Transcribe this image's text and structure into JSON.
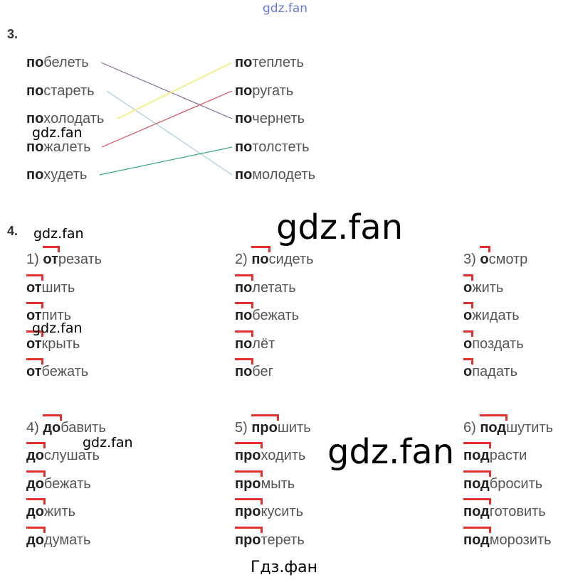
{
  "watermarks": {
    "top": "gdz.fan",
    "small": "gdz.fan",
    "big": "gdz.fan",
    "footer": "Гдз.фан"
  },
  "task3": {
    "number": "3.",
    "left": [
      {
        "prefix": "по",
        "rest": "белеть"
      },
      {
        "prefix": "по",
        "rest": "стареть"
      },
      {
        "prefix": "по",
        "rest": "холодать"
      },
      {
        "prefix": "по",
        "rest": "жалеть"
      },
      {
        "prefix": "по",
        "rest": "худеть"
      }
    ],
    "right": [
      {
        "prefix": "по",
        "rest": "теплеть"
      },
      {
        "prefix": "по",
        "rest": "ругать"
      },
      {
        "prefix": "по",
        "rest": "чернеть"
      },
      {
        "prefix": "по",
        "rest": "толстеть"
      },
      {
        "prefix": "по",
        "rest": "молодеть"
      }
    ],
    "matches": [
      {
        "left": 0,
        "right": 2,
        "color": "#8a6a9a"
      },
      {
        "left": 1,
        "right": 4,
        "color": "#a8cde0"
      },
      {
        "left": 2,
        "right": 0,
        "color": "#f5f08a"
      },
      {
        "left": 3,
        "right": 1,
        "color": "#d04a5a"
      },
      {
        "left": 4,
        "right": 3,
        "color": "#3aaa7a"
      }
    ]
  },
  "task4": {
    "number": "4.",
    "groups": [
      {
        "label": "1)",
        "words": [
          {
            "prefix": "от",
            "rest": "резать"
          },
          {
            "prefix": "от",
            "rest": "шить"
          },
          {
            "prefix": "от",
            "rest": "пить"
          },
          {
            "prefix": "от",
            "rest": "крыть"
          },
          {
            "prefix": "от",
            "rest": "бежать"
          }
        ]
      },
      {
        "label": "2)",
        "words": [
          {
            "prefix": "по",
            "rest": "сидеть"
          },
          {
            "prefix": "по",
            "rest": "летать"
          },
          {
            "prefix": "по",
            "rest": "бежать"
          },
          {
            "prefix": "по",
            "rest": "лёт"
          },
          {
            "prefix": "по",
            "rest": "бег"
          }
        ]
      },
      {
        "label": "3)",
        "words": [
          {
            "prefix": "о",
            "rest": "смотр"
          },
          {
            "prefix": "о",
            "rest": "жить"
          },
          {
            "prefix": "о",
            "rest": "жидать"
          },
          {
            "prefix": "о",
            "rest": "поздать"
          },
          {
            "prefix": "о",
            "rest": "падать"
          }
        ]
      },
      {
        "label": "4)",
        "words": [
          {
            "prefix": "до",
            "rest": "бавить"
          },
          {
            "prefix": "до",
            "rest": "слушать"
          },
          {
            "prefix": "до",
            "rest": "бежать"
          },
          {
            "prefix": "до",
            "rest": "жить"
          },
          {
            "prefix": "до",
            "rest": "думать"
          }
        ]
      },
      {
        "label": "5)",
        "words": [
          {
            "prefix": "про",
            "rest": "шить"
          },
          {
            "prefix": "про",
            "rest": "ходить"
          },
          {
            "prefix": "про",
            "rest": "мыть"
          },
          {
            "prefix": "про",
            "rest": "кусить"
          },
          {
            "prefix": "про",
            "rest": "тереть"
          }
        ]
      },
      {
        "label": "6)",
        "words": [
          {
            "prefix": "под",
            "rest": "шутить"
          },
          {
            "prefix": "под",
            "rest": "расти"
          },
          {
            "prefix": "под",
            "rest": "бросить"
          },
          {
            "prefix": "под",
            "rest": "готовить"
          },
          {
            "prefix": "под",
            "rest": "морозить"
          }
        ]
      }
    ]
  }
}
